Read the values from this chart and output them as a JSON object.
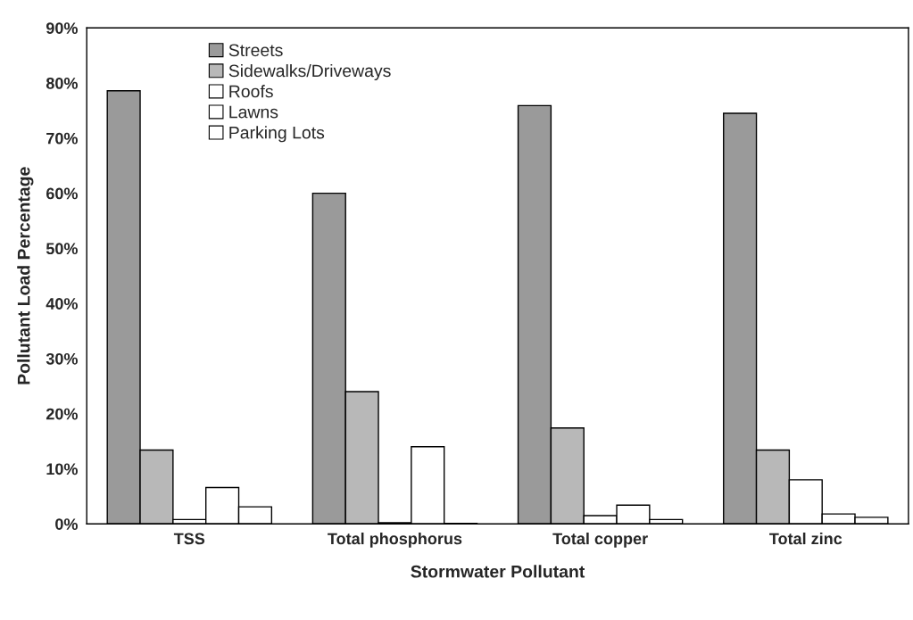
{
  "chart_data": {
    "type": "bar",
    "xlabel": "Stormwater Pollutant",
    "ylabel": "Pollutant Load Percentage",
    "categories": [
      "TSS",
      "Total phosphorus",
      "Total copper",
      "Total zinc"
    ],
    "series": [
      {
        "name": "Streets",
        "color": "#9a9a9a",
        "values": [
          78.6,
          60,
          75.9,
          74.5
        ]
      },
      {
        "name": "Sidewalks/Driveways",
        "color": "#b8b8b8",
        "values": [
          13.4,
          24,
          17.4,
          13.4
        ]
      },
      {
        "name": "Roofs",
        "color": "#ffffff",
        "values": [
          0.8,
          0.2,
          1.5,
          8
        ]
      },
      {
        "name": "Lawns",
        "color": "#ffffff",
        "values": [
          6.6,
          14,
          3.4,
          1.8
        ]
      },
      {
        "name": "Parking Lots",
        "color": "#ffffff",
        "values": [
          3.1,
          0.1,
          0.8,
          1.2
        ]
      }
    ],
    "ylim": [
      0,
      90
    ],
    "yticks": [
      {
        "value": 0,
        "label": "0%"
      },
      {
        "value": 10,
        "label": "10%"
      },
      {
        "value": 20,
        "label": "20%"
      },
      {
        "value": 30,
        "label": "30%"
      },
      {
        "value": 40,
        "label": "40%"
      },
      {
        "value": 50,
        "label": "50%"
      },
      {
        "value": 60,
        "label": "60%"
      },
      {
        "value": 70,
        "label": "70%"
      },
      {
        "value": 80,
        "label": "80%"
      },
      {
        "value": 90,
        "label": "90%"
      }
    ],
    "grid": false,
    "legend": "top left"
  }
}
